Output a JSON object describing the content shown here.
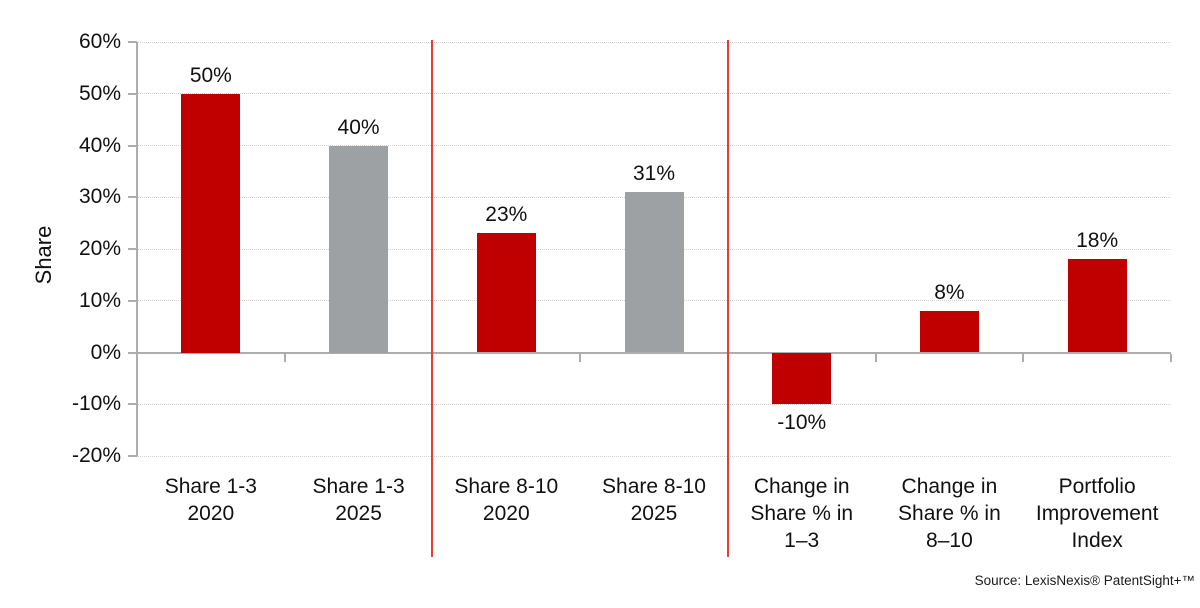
{
  "chart_data": {
    "type": "bar",
    "ylabel": "Share",
    "ylim": [
      -20,
      60
    ],
    "grid": true,
    "legend": false,
    "yticks": [
      {
        "value": 60,
        "label": "60%"
      },
      {
        "value": 50,
        "label": "50%"
      },
      {
        "value": 40,
        "label": "40%"
      },
      {
        "value": 30,
        "label": "30%"
      },
      {
        "value": 20,
        "label": "20%"
      },
      {
        "value": 10,
        "label": "10%"
      },
      {
        "value": 0,
        "label": "0%"
      },
      {
        "value": -10,
        "label": "-10%"
      },
      {
        "value": -20,
        "label": "-20%"
      }
    ],
    "categories": [
      [
        "Share 1-3",
        "2020"
      ],
      [
        "Share 1-3",
        "2025"
      ],
      [
        "Share 8-10",
        "2020"
      ],
      [
        "Share 8-10",
        "2025"
      ],
      [
        "Change in",
        "Share % in",
        "1–3"
      ],
      [
        "Change in",
        "Share % in",
        "8–10"
      ],
      [
        "Portfolio",
        "Improvement",
        "Index"
      ]
    ],
    "values": [
      50,
      40,
      23,
      31,
      -10,
      8,
      18
    ],
    "value_labels": [
      "50%",
      "40%",
      "23%",
      "31%",
      "-10%",
      "8%",
      "18%"
    ],
    "bar_colors": [
      "red",
      "gray",
      "red",
      "gray",
      "red",
      "red",
      "red"
    ],
    "section_dividers_after_category": [
      2,
      4
    ]
  },
  "colors": {
    "red": "#C00000",
    "gray": "#9DA1A4",
    "divider": "#E93B32",
    "gridline": "#D2D2D2",
    "axis": "#ADADAD"
  },
  "source": "Source: LexisNexis® PatentSight+™"
}
